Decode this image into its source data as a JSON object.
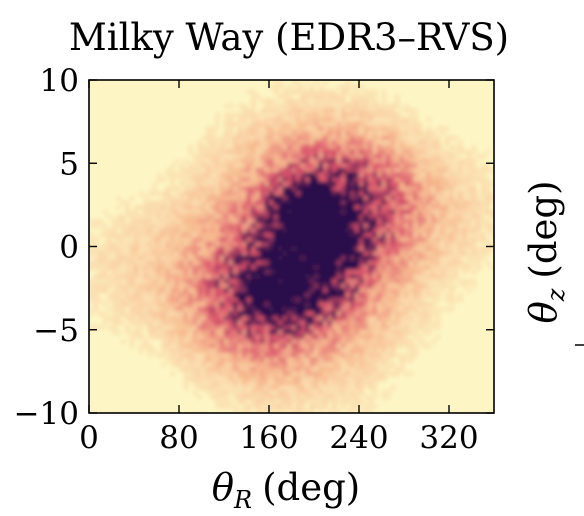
{
  "chart_data": {
    "type": "heatmap",
    "title": "Milky Way (EDR3–RVS)",
    "xlabel": {
      "symbol": "θ",
      "subscript": "R",
      "unit": "(deg)"
    },
    "ylabel": {
      "symbol": "θ",
      "subscript": "z",
      "unit": "(deg)"
    },
    "xlim": [
      0,
      360
    ],
    "ylim": [
      -10,
      10
    ],
    "x_ticks": [
      0,
      80,
      160,
      240,
      320
    ],
    "y_ticks": [
      10,
      5,
      0,
      -5,
      -10
    ],
    "x_tick_labels": [
      "0",
      "80",
      "160",
      "240",
      "320"
    ],
    "y_tick_labels": [
      "10",
      "5",
      "0",
      "−5",
      "−10"
    ],
    "grid": false,
    "colormap": "magma_r",
    "colors": {
      "background": "#fdf6c4",
      "low": "#f7b98f",
      "mid": "#d9506a",
      "high": "#2b0f4c"
    },
    "density_clusters": [
      {
        "x": 190,
        "y": -0.5,
        "sx": 58,
        "sy": 4.8,
        "w": 0.55
      },
      {
        "x": 200,
        "y": 0.5,
        "sx": 28,
        "sy": 2.6,
        "w": 0.9
      },
      {
        "x": 185,
        "y": 1.8,
        "sx": 12,
        "sy": 1.0,
        "w": 0.7
      },
      {
        "x": 215,
        "y": 1.0,
        "sx": 10,
        "sy": 1.2,
        "w": 0.55
      },
      {
        "x": 165,
        "y": -2.5,
        "sx": 22,
        "sy": 1.5,
        "w": 0.45
      },
      {
        "x": 175,
        "y": -3.0,
        "sx": 25,
        "sy": 1.0,
        "w": 0.35
      },
      {
        "x": 140,
        "y": -3.5,
        "sx": 35,
        "sy": 2.5,
        "w": 0.35
      },
      {
        "x": 245,
        "y": 3.0,
        "sx": 35,
        "sy": 2.5,
        "w": 0.35
      },
      {
        "x": 60,
        "y": -1.5,
        "sx": 60,
        "sy": 3.0,
        "w": 0.12
      },
      {
        "x": 300,
        "y": 2.0,
        "sx": 60,
        "sy": 3.0,
        "w": 0.12
      }
    ]
  }
}
